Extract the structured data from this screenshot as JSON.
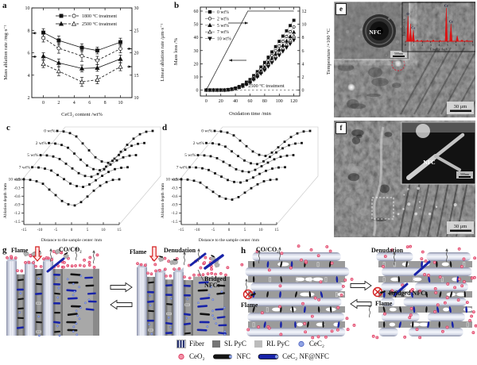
{
  "panels": {
    "a": "a",
    "b": "b",
    "c": "c",
    "d": "d",
    "e": "e",
    "f": "f",
    "g": "g",
    "h": "h"
  },
  "colors": {
    "eds_red": "#dd1111",
    "flame_red": "#d42020",
    "ceo2_pink": "#f291a6",
    "ceo2_ring": "#d92b55",
    "cec2_blue": "#90a4e4",
    "cec2_ring": "#4a5fc0",
    "rod_blue": "#1823a8",
    "rod_black": "#141414",
    "matrix_gray": "#9b9b9b",
    "sl_pyc": "#757575",
    "rl_pyc": "#bcbcbc"
  },
  "chart_data": [
    {
      "id": "a",
      "type": "line",
      "panel": "a",
      "xlabel": "CeCl₃ content /wt%",
      "ylabel_left": "Mass ablation rate /mg·s⁻¹",
      "ylabel_right": "Linear ablation rate /μm·s⁻¹",
      "xlim": [
        -1.5,
        11.5
      ],
      "ylim_left": [
        2,
        10
      ],
      "ylim_right": [
        10,
        30
      ],
      "xticks": [
        0,
        2,
        4,
        6,
        8,
        10
      ],
      "yticks_left": [
        2,
        4,
        6,
        8,
        10
      ],
      "yticks_right": [
        10,
        15,
        20,
        25,
        30
      ],
      "x": [
        0,
        2,
        5,
        7,
        10
      ],
      "series": [
        {
          "name": "1800 mass",
          "axis": "left",
          "marker": "square",
          "filled": true,
          "line": "solid",
          "values": [
            7.8,
            7.1,
            6.45,
            6.2,
            6.95
          ],
          "errors": [
            0.35,
            0.4,
            0.35,
            0.3,
            0.35
          ]
        },
        {
          "name": "1800 linear",
          "axis": "right",
          "marker": "circle",
          "filled": false,
          "line": "dashed",
          "values": [
            23.3,
            21.0,
            19.3,
            18.3,
            20.9
          ],
          "errors": [
            0.9,
            1.1,
            1.2,
            0.9,
            0.9
          ]
        },
        {
          "name": "2500 mass",
          "axis": "left",
          "marker": "triangle",
          "filled": true,
          "line": "solid",
          "values": [
            5.7,
            5.1,
            4.6,
            4.65,
            5.45
          ],
          "errors": [
            0.3,
            0.35,
            0.3,
            0.3,
            0.35
          ]
        },
        {
          "name": "2500 linear",
          "axis": "right",
          "marker": "triangle",
          "filled": false,
          "line": "dashed",
          "values": [
            17.5,
            15.9,
            13.5,
            14.0,
            16.9
          ],
          "errors": [
            0.8,
            1.0,
            1.0,
            0.9,
            0.9
          ]
        }
      ],
      "legend": [
        {
          "label": "1800 °C treatment",
          "marker_solid": "square",
          "marker_dash": "circle"
        },
        {
          "label": "2500 °C treatment",
          "marker_solid": "triangle",
          "marker_dash": "triangle"
        }
      ]
    },
    {
      "id": "b",
      "type": "line",
      "panel": "b",
      "xlabel": "Oxidation time /min",
      "ylabel_left": "Mass loss /%",
      "ylabel_right": "Temperature /×100 °C",
      "xlim": [
        -8,
        128
      ],
      "ylim_left": [
        -4.5,
        63
      ],
      "ylim_right": [
        -0.9,
        12.6
      ],
      "xticks": [
        0,
        20,
        40,
        60,
        80,
        100,
        120
      ],
      "yticks_left": [
        0,
        10,
        20,
        30,
        40,
        50,
        60
      ],
      "yticks_right": [
        0,
        2,
        4,
        6,
        8,
        10,
        12
      ],
      "annotation": "2500 °C treatment",
      "x": [
        0,
        5,
        10,
        15,
        20,
        25,
        30,
        35,
        40,
        45,
        50,
        55,
        60,
        65,
        70,
        75,
        80,
        85,
        90,
        95,
        100,
        105,
        110,
        115,
        120
      ],
      "series": [
        {
          "name": "0 wt%",
          "marker": "square",
          "filled": true,
          "values": [
            0,
            0,
            0,
            0,
            0,
            0,
            0.3,
            0.8,
            1.5,
            2.7,
            4,
            6,
            8,
            11,
            14,
            17.5,
            21,
            25,
            29,
            33,
            37,
            41,
            45,
            49,
            53
          ]
        },
        {
          "name": "2 wt%",
          "marker": "circle",
          "filled": false,
          "values": [
            0,
            0,
            0,
            0,
            0,
            0,
            0.3,
            0.7,
            1.4,
            2.4,
            3.6,
            5.4,
            7.2,
            10,
            12.7,
            15.9,
            19,
            22.7,
            26.3,
            29.9,
            33.5,
            37.1,
            40.8,
            44.4,
            48
          ]
        },
        {
          "name": "5 wt%",
          "marker": "triangle",
          "filled": true,
          "values": [
            0,
            0,
            0,
            0,
            0,
            0,
            0.2,
            0.7,
            1.2,
            2.2,
            3.3,
            5,
            6.6,
            9.1,
            11.6,
            14.5,
            17.4,
            20.8,
            24.1,
            27.4,
            30.7,
            34,
            37.3,
            40.7,
            44
          ]
        },
        {
          "name": "7 wt%",
          "marker": "triangle",
          "filled": false,
          "values": [
            0,
            0,
            0,
            0,
            0,
            0,
            0.2,
            0.6,
            1.2,
            2.1,
            3.1,
            4.6,
            6.2,
            8.5,
            10.8,
            13.5,
            16.2,
            19.3,
            22.4,
            25.5,
            28.6,
            31.7,
            34.8,
            37.9,
            41
          ]
        },
        {
          "name": "10 wt%",
          "marker": "triangle-down",
          "filled": true,
          "values": [
            0,
            0,
            0,
            0,
            0,
            0,
            0.2,
            0.6,
            1.1,
            1.9,
            2.9,
            4.3,
            5.7,
            7.9,
            10,
            12.5,
            15.1,
            17.9,
            20.8,
            23.7,
            26.5,
            29.4,
            32.3,
            35.1,
            38
          ]
        }
      ],
      "temperature": {
        "name": "Temperature",
        "axis": "right",
        "x": [
          0,
          57,
          120
        ],
        "values": [
          0,
          12,
          12
        ]
      }
    },
    {
      "id": "c",
      "type": "waterfall",
      "panel": "c",
      "xlabel": "Distance to the sample center /mm",
      "ylabel": "Ablation depth /mm",
      "xticks": [
        -15,
        -10,
        -5,
        0,
        5,
        10,
        15
      ],
      "yticks": [
        0.0,
        -0.3,
        -0.6,
        -0.9,
        -1.2,
        -1.5
      ],
      "x": [
        -15,
        -13,
        -11,
        -9,
        -7,
        -5,
        -3,
        -1,
        1,
        3,
        5,
        7,
        9,
        11,
        13,
        15
      ],
      "series": [
        {
          "name": "0 wt%",
          "values": [
            0,
            -0.02,
            -0.08,
            -0.2,
            -0.45,
            -0.7,
            -0.95,
            -1.1,
            -1.15,
            -1.0,
            -0.75,
            -0.5,
            -0.28,
            -0.12,
            -0.03,
            0
          ]
        },
        {
          "name": "2 wt%",
          "values": [
            0,
            -0.02,
            -0.07,
            -0.17,
            -0.38,
            -0.6,
            -0.81,
            -0.94,
            -0.98,
            -0.85,
            -0.64,
            -0.43,
            -0.24,
            -0.1,
            -0.03,
            0
          ]
        },
        {
          "name": "5 wt%",
          "values": [
            0,
            -0.01,
            -0.05,
            -0.14,
            -0.31,
            -0.48,
            -0.65,
            -0.75,
            -0.78,
            -0.68,
            -0.51,
            -0.34,
            -0.19,
            -0.08,
            -0.02,
            0
          ]
        },
        {
          "name": "7 wt%",
          "values": [
            0,
            -0.01,
            -0.05,
            -0.12,
            -0.28,
            -0.43,
            -0.59,
            -0.68,
            -0.71,
            -0.62,
            -0.47,
            -0.31,
            -0.17,
            -0.07,
            -0.02,
            0
          ]
        },
        {
          "name": "10 wt%",
          "values": [
            0,
            -0.02,
            -0.07,
            -0.16,
            -0.37,
            -0.57,
            -0.78,
            -0.9,
            -0.94,
            -0.82,
            -0.62,
            -0.41,
            -0.23,
            -0.1,
            -0.02,
            0
          ]
        }
      ]
    },
    {
      "id": "d",
      "type": "waterfall",
      "panel": "d",
      "xlabel": "Distance to the sample center /mm",
      "ylabel": "Ablation depth /mm",
      "xticks": [
        -15,
        -10,
        -5,
        0,
        5,
        10,
        15
      ],
      "yticks": [
        0.0,
        -0.3,
        -0.6,
        -0.9,
        -1.2,
        -1.5
      ],
      "x": [
        -15,
        -13,
        -11,
        -9,
        -7,
        -5,
        -3,
        -1,
        1,
        3,
        5,
        7,
        9,
        11,
        13,
        15
      ],
      "series": [
        {
          "name": "0 wt%",
          "values": [
            0,
            -0.02,
            -0.06,
            -0.16,
            -0.35,
            -0.55,
            -0.74,
            -0.86,
            -0.9,
            -0.78,
            -0.59,
            -0.39,
            -0.22,
            -0.09,
            -0.02,
            0
          ]
        },
        {
          "name": "2 wt%",
          "values": [
            0,
            -0.01,
            -0.05,
            -0.13,
            -0.3,
            -0.47,
            -0.63,
            -0.73,
            -0.76,
            -0.66,
            -0.5,
            -0.34,
            -0.19,
            -0.08,
            -0.02,
            0
          ]
        },
        {
          "name": "5 wt%",
          "values": [
            0,
            -0.01,
            -0.04,
            -0.11,
            -0.24,
            -0.37,
            -0.51,
            -0.58,
            -0.61,
            -0.53,
            -0.4,
            -0.27,
            -0.15,
            -0.06,
            -0.02,
            0
          ]
        },
        {
          "name": "7 wt%",
          "values": [
            0,
            -0.01,
            -0.04,
            -0.1,
            -0.22,
            -0.34,
            -0.46,
            -0.53,
            -0.55,
            -0.48,
            -0.37,
            -0.24,
            -0.13,
            -0.05,
            -0.01,
            0
          ]
        },
        {
          "name": "10 wt%",
          "values": [
            0,
            -0.01,
            -0.05,
            -0.12,
            -0.29,
            -0.45,
            -0.61,
            -0.7,
            -0.73,
            -0.64,
            -0.48,
            -0.32,
            -0.18,
            -0.07,
            -0.02,
            0
          ]
        }
      ]
    },
    {
      "id": "e-eds",
      "type": "area",
      "panel": "e",
      "xlabel": "Energy /keV",
      "ylabel": "Intensity /a.u.",
      "xticks": [
        0,
        1,
        2,
        3,
        4,
        5,
        6,
        7,
        8
      ],
      "peaks": [
        {
          "x": 0.3,
          "height": 0.72,
          "label": "O"
        },
        {
          "x": 0.6,
          "height": 0.5,
          "label": ""
        },
        {
          "x": 0.93,
          "height": 0.32,
          "label": "Ce"
        },
        {
          "x": 4.85,
          "height": 0.95,
          "label": "Ce"
        },
        {
          "x": 5.4,
          "height": 0.5,
          "label": "Ce"
        },
        {
          "x": 6.15,
          "height": 0.16,
          "label": ""
        }
      ]
    }
  ],
  "panel_e": {
    "label": "e",
    "inset_label": "NFC",
    "inset_scale": "500nm",
    "scale": "30 μm"
  },
  "panel_f": {
    "label": "f",
    "inset_label": "NFC",
    "inset_scale": "500nm",
    "scale": "30 μm"
  },
  "schematic_g": {
    "flame_left": "Flame",
    "co_co2": "CO/CO₂",
    "flame_right": "Flame",
    "denudation": "Denudation",
    "bridged_nfcs": "Bridged NFCs"
  },
  "schematic_h": {
    "co_co2": "CO/CO₂",
    "flame_left": "Flame",
    "denudation": "Denudation",
    "bridged_nfcs": "Bridged NFCs",
    "flame_right": "Flame"
  },
  "legend": {
    "rows": [
      [
        {
          "icon": "fiber",
          "label": "Fiber"
        },
        {
          "icon": "sl-pyc",
          "label": "SL PyC"
        },
        {
          "icon": "rl-pyc",
          "label": "RL PyC"
        },
        {
          "icon": "cec2",
          "label": "CeC₂"
        }
      ],
      [
        {
          "icon": "ceo2",
          "label": "CeO₂"
        },
        {
          "icon": "nfc",
          "label": "NFC"
        },
        {
          "icon": "cec2nfnfc",
          "label": "CeC₂ NF@NFC"
        }
      ]
    ]
  }
}
